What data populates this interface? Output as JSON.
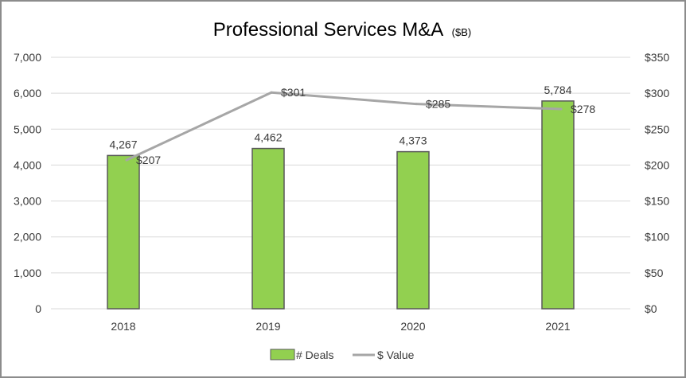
{
  "colors": {
    "bar_fill": "#92d050",
    "bar_stroke": "#595959",
    "line": "#a6a6a6",
    "grid": "#d9d9d9",
    "text": "#3a3a3a"
  },
  "chart_data": {
    "type": "bar",
    "title": "Professional Services M&A",
    "subtitle": "($B)",
    "categories": [
      "2018",
      "2019",
      "2020",
      "2021"
    ],
    "series": [
      {
        "name": "# Deals",
        "type": "bar",
        "axis": "left",
        "values": [
          4267,
          4462,
          4373,
          5784
        ],
        "labels": [
          "4,267",
          "4,462",
          "4,373",
          "5,784"
        ]
      },
      {
        "name": "$ Value",
        "type": "line",
        "axis": "right",
        "values": [
          207,
          301,
          285,
          278
        ],
        "labels": [
          "$207",
          "$301",
          "$285",
          "$278"
        ]
      }
    ],
    "y_left": {
      "range": [
        0,
        7000
      ],
      "ticks": [
        0,
        1000,
        2000,
        3000,
        4000,
        5000,
        6000,
        7000
      ],
      "tick_labels": [
        "0",
        "1,000",
        "2,000",
        "3,000",
        "4,000",
        "5,000",
        "6,000",
        "7,000"
      ]
    },
    "y_right": {
      "range": [
        0,
        350
      ],
      "ticks": [
        0,
        50,
        100,
        150,
        200,
        250,
        300,
        350
      ],
      "tick_labels": [
        "$0",
        "$50",
        "$100",
        "$150",
        "$200",
        "$250",
        "$300",
        "$350"
      ]
    },
    "grid": true,
    "legend": "bottom"
  }
}
